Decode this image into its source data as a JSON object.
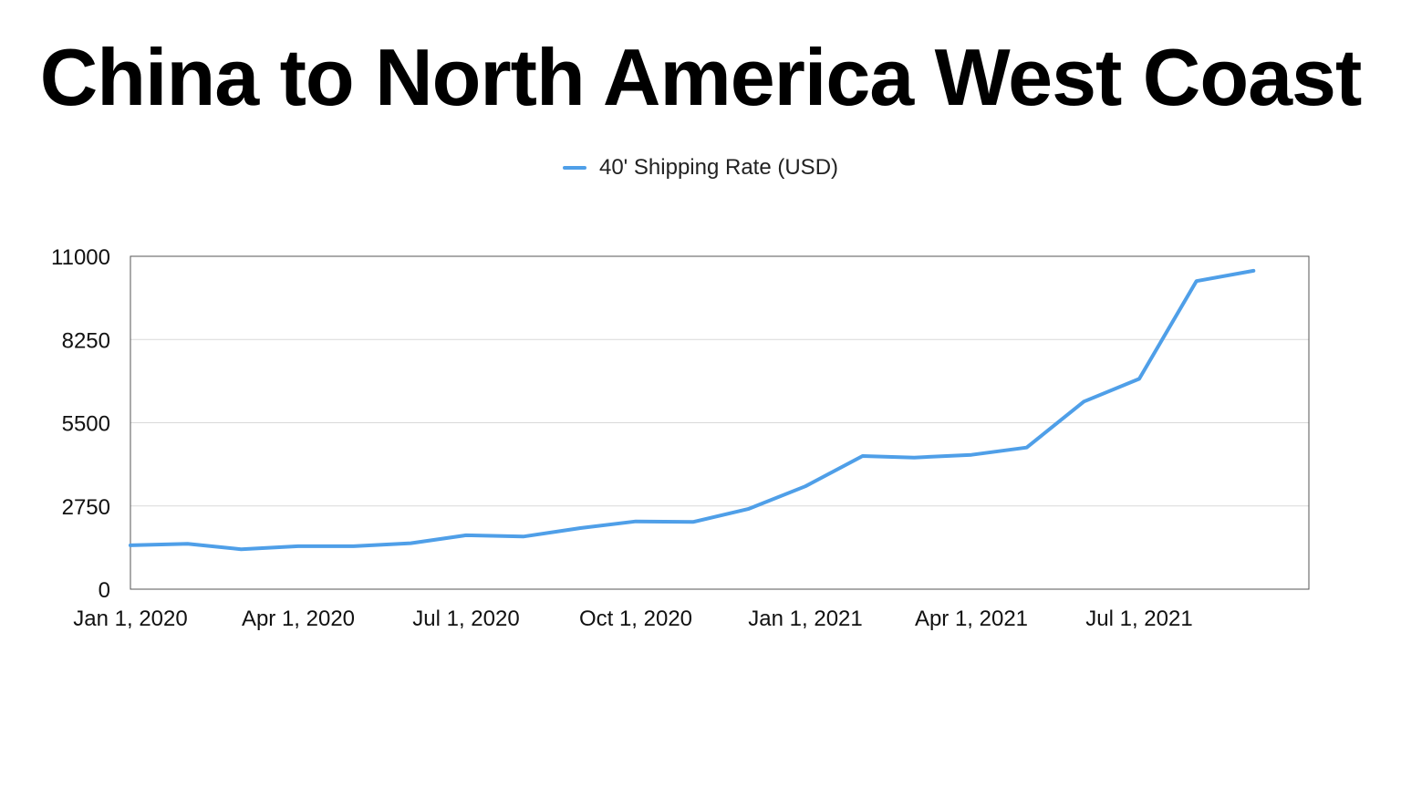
{
  "chart_data": {
    "type": "line",
    "title": "China to North America West Coast",
    "xlabel": "",
    "ylabel": "",
    "legend_position": "top-center",
    "grid": true,
    "ylim": [
      0,
      11000
    ],
    "y_ticks": [
      "0",
      "2750",
      "5500",
      "8250",
      "11000"
    ],
    "y_tick_values": [
      0,
      2750,
      5500,
      8250,
      11000
    ],
    "x_range": [
      "2020-01-01",
      "2021-10-01"
    ],
    "x_ticks": [
      "Jan 1, 2020",
      "Apr 1, 2020",
      "Jul 1, 2020",
      "Oct 1, 2020",
      "Jan 1, 2021",
      "Apr 1, 2021",
      "Jul 1, 2021"
    ],
    "x_tick_dates": [
      "2020-01-01",
      "2020-04-01",
      "2020-07-01",
      "2020-10-01",
      "2021-01-01",
      "2021-04-01",
      "2021-07-01"
    ],
    "series": [
      {
        "name": "40' Shipping Rate (USD)",
        "color": "#4f9fe8",
        "x": [
          "2020-01-01",
          "2020-02-01",
          "2020-03-01",
          "2020-04-01",
          "2020-05-01",
          "2020-06-01",
          "2020-07-01",
          "2020-08-01",
          "2020-09-01",
          "2020-10-01",
          "2020-11-01",
          "2020-12-01",
          "2021-01-01",
          "2021-02-01",
          "2021-03-01",
          "2021-04-01",
          "2021-05-01",
          "2021-06-01",
          "2021-07-01",
          "2021-08-01",
          "2021-09-01"
        ],
        "values": [
          1450,
          1500,
          1320,
          1420,
          1420,
          1520,
          1780,
          1740,
          2020,
          2240,
          2220,
          2650,
          3400,
          4400,
          4350,
          4440,
          4680,
          6200,
          6950,
          10180,
          10520
        ]
      }
    ]
  }
}
